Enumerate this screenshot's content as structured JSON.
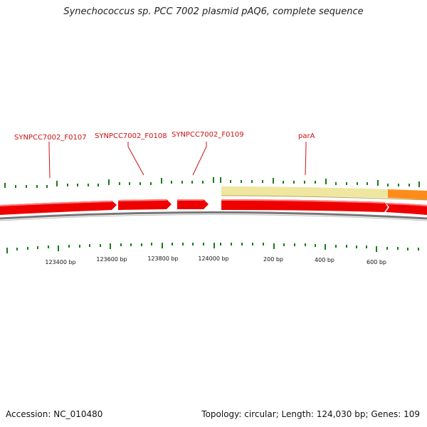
{
  "title": "Synechococcus sp. PCC 7002 plasmid pAQ6, complete sequence",
  "footer": {
    "accession": "Accession: NC_010480",
    "summary": "Topology: circular; Length: 124,030 bp; Genes: 109"
  },
  "gene_labels": [
    {
      "id": "f0107",
      "text": "SYNPCC7002_F0107"
    },
    {
      "id": "f0108",
      "text": "SYNPCC7002_F0108"
    },
    {
      "id": "f0109",
      "text": "SYNPCC7002_F0109"
    },
    {
      "id": "para",
      "text": "parA"
    }
  ],
  "bp_labels": [
    "123400 bp",
    "123600 bp",
    "123800 bp",
    "124000 bp",
    "200 bp",
    "400 bp",
    "600 bp"
  ],
  "colors": {
    "gene": "#ee0000",
    "gene_highlight": "#ff6b6b",
    "tick": "#1a7a1a",
    "backbone": "#777777",
    "feature_pale": "#efe6a0",
    "feature_orange": "#ff8c1a",
    "label": "#cc1111"
  }
}
